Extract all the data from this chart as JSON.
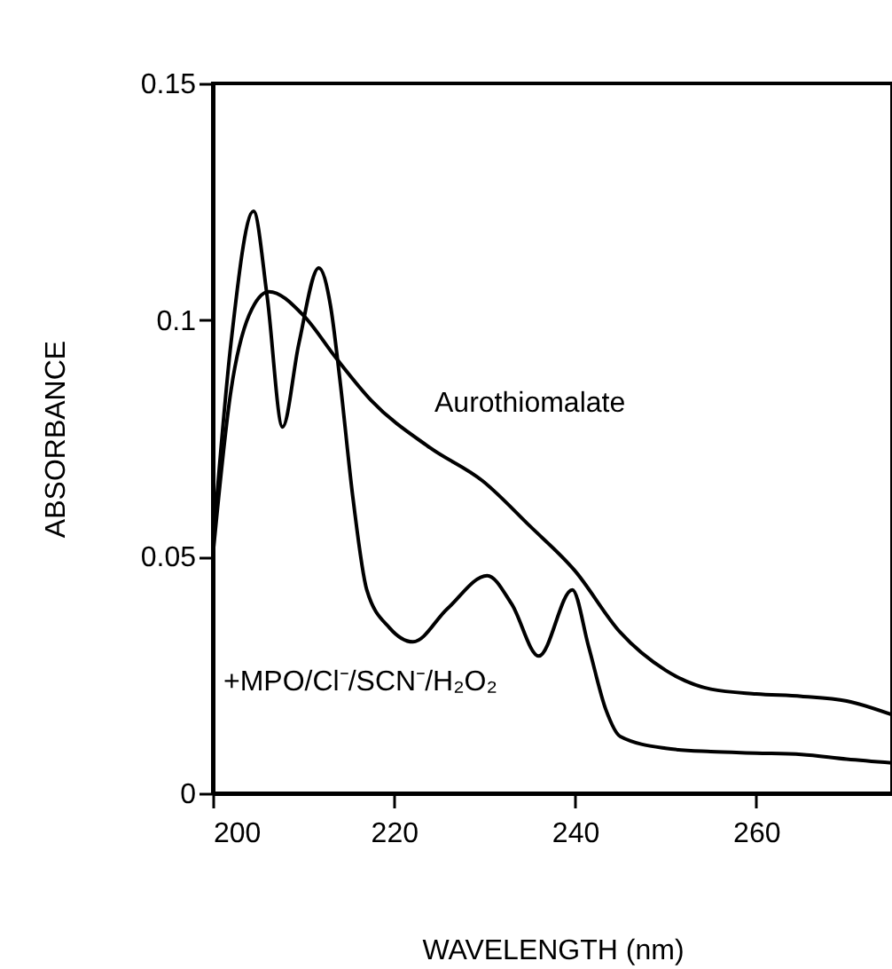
{
  "chart_data": {
    "type": "line",
    "xlabel": "WAVELENGTH  (nm)",
    "ylabel": "ABSORBANCE",
    "xlim": [
      200,
      275
    ],
    "ylim": [
      0,
      0.15
    ],
    "xticks": [
      200,
      220,
      240,
      260
    ],
    "yticks": [
      0,
      0.05,
      0.1,
      0.15
    ],
    "series": [
      {
        "name": "Aurothiomalate",
        "color": "#000000",
        "x": [
          200,
          202,
          204,
          206.2,
          210,
          213.6,
          217.5,
          224,
          229.8,
          235,
          240,
          245,
          250,
          255,
          260,
          265,
          270,
          275
        ],
        "values": [
          0.05,
          0.085,
          0.101,
          0.106,
          0.101,
          0.092,
          0.083,
          0.073,
          0.066,
          0.0565,
          0.047,
          0.034,
          0.026,
          0.022,
          0.021,
          0.0205,
          0.0195,
          0.0166
        ]
      },
      {
        "name": "+MPO/Cl⁻/SCN⁻/H₂O₂",
        "color": "#000000",
        "x": [
          200,
          202,
          204.5,
          206,
          207.7,
          209.5,
          211.7,
          213,
          214,
          215.5,
          217,
          219.5,
          222.1,
          225.9,
          230.3,
          233,
          236,
          239.7,
          241.5,
          243.4,
          245,
          250,
          255,
          260,
          265,
          270,
          275
        ],
        "values": [
          0.052,
          0.095,
          0.123,
          0.105,
          0.0774,
          0.095,
          0.111,
          0.103,
          0.088,
          0.062,
          0.043,
          0.035,
          0.032,
          0.039,
          0.046,
          0.04,
          0.029,
          0.043,
          0.031,
          0.0177,
          0.012,
          0.0095,
          0.0088,
          0.0085,
          0.0082,
          0.0072,
          0.0064
        ]
      }
    ]
  }
}
